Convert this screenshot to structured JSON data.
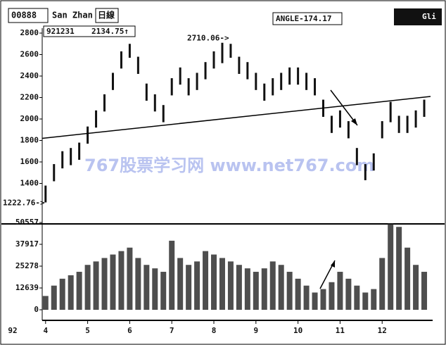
{
  "header": {
    "code": "00888",
    "name": "San Zhan",
    "period": "日線",
    "date": "921231",
    "price": "2134.75↑",
    "angle": "ANGLE-174.17",
    "button": "Gli"
  },
  "watermark": "767股票学习网 www.net767.com",
  "chart_data": [
    {
      "type": "range",
      "x": [
        4.0,
        4.2,
        4.4,
        4.6,
        4.8,
        5.0,
        5.2,
        5.4,
        5.6,
        5.8,
        6.0,
        6.2,
        6.4,
        6.6,
        6.8,
        7.0,
        7.2,
        7.4,
        7.6,
        7.8,
        8.0,
        8.2,
        8.4,
        8.6,
        8.8,
        9.0,
        9.2,
        9.4,
        9.6,
        9.8,
        10.0,
        10.2,
        10.4,
        10.6,
        10.8,
        11.0,
        11.2,
        11.4,
        11.6,
        11.8,
        12.0,
        12.2,
        12.4,
        12.6,
        12.8,
        13.0
      ],
      "highs": [
        1380,
        1580,
        1700,
        1730,
        1780,
        1930,
        2080,
        2230,
        2430,
        2630,
        2700,
        2580,
        2330,
        2230,
        2130,
        2380,
        2480,
        2380,
        2430,
        2530,
        2630,
        2710,
        2700,
        2580,
        2530,
        2430,
        2330,
        2380,
        2430,
        2480,
        2480,
        2430,
        2380,
        2180,
        2030,
        2080,
        1980,
        1730,
        1580,
        1680,
        1980,
        2160,
        2030,
        2030,
        2080,
        2180
      ],
      "lows": [
        1223,
        1420,
        1540,
        1570,
        1620,
        1770,
        1920,
        2070,
        2270,
        2470,
        2570,
        2420,
        2170,
        2070,
        1970,
        2220,
        2320,
        2220,
        2270,
        2370,
        2470,
        2520,
        2570,
        2420,
        2370,
        2270,
        2170,
        2220,
        2270,
        2320,
        2320,
        2270,
        2220,
        2020,
        1870,
        1920,
        1820,
        1570,
        1430,
        1520,
        1820,
        1970,
        1870,
        1870,
        1920,
        2020
      ],
      "color": "#111111",
      "xlim": [
        3.92,
        13.2
      ],
      "ylim": [
        1023,
        2846
      ],
      "yticks": [
        1400,
        1600,
        1800,
        2000,
        2200,
        2400,
        2600,
        2800
      ],
      "trendline": {
        "x": [
          3.92,
          13.15
        ],
        "values": [
          1820,
          2210
        ]
      },
      "annotations": [
        "2710.06->",
        "1222.76->"
      ]
    },
    {
      "type": "bar",
      "x": [
        4.0,
        4.2,
        4.4,
        4.6,
        4.8,
        5.0,
        5.2,
        5.4,
        5.6,
        5.8,
        6.0,
        6.2,
        6.4,
        6.6,
        6.8,
        7.0,
        7.2,
        7.4,
        7.6,
        7.8,
        8.0,
        8.2,
        8.4,
        8.6,
        8.8,
        9.0,
        9.2,
        9.4,
        9.6,
        9.8,
        10.0,
        10.2,
        10.4,
        10.6,
        10.8,
        11.0,
        11.2,
        11.4,
        11.6,
        11.8,
        12.0,
        12.2,
        12.4,
        12.6,
        12.8,
        13.0
      ],
      "values": [
        8000,
        14000,
        18000,
        20000,
        22000,
        26000,
        28000,
        30000,
        32000,
        34000,
        36000,
        30000,
        26000,
        24000,
        22000,
        40000,
        30000,
        26000,
        28000,
        34000,
        32000,
        30000,
        28000,
        26000,
        24000,
        22000,
        24000,
        28000,
        26000,
        22000,
        18000,
        14000,
        10000,
        12000,
        16000,
        22000,
        18000,
        14000,
        10000,
        12000,
        30000,
        50000,
        48000,
        36000,
        26000,
        22000
      ],
      "color": "#222222",
      "xlim": [
        3.92,
        13.2
      ],
      "xticks": [
        4,
        5,
        6,
        7,
        8,
        9,
        10,
        11,
        12
      ],
      "ylim": [
        0,
        50557
      ],
      "yticks": [
        0,
        12639,
        25278,
        37917,
        50557
      ],
      "year": "92"
    }
  ]
}
